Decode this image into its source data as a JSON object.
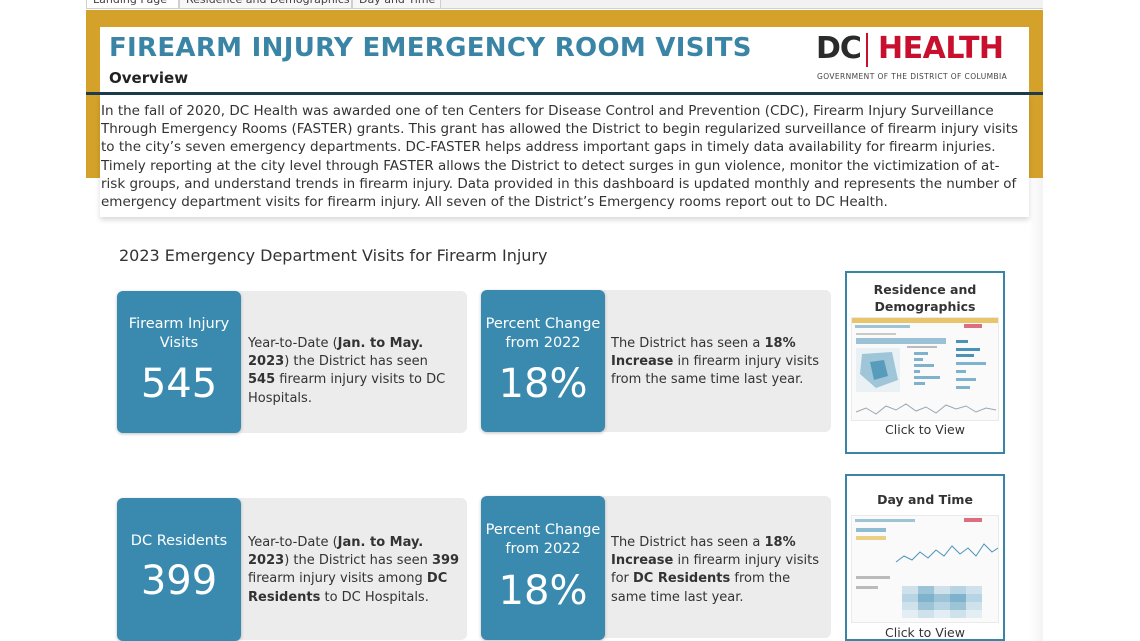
{
  "tabs": [
    "Landing Page",
    "Residence and Demographics",
    "Day and Time"
  ],
  "header": {
    "title": "FIREARM INJURY EMERGENCY ROOM VISITS",
    "subtitle": "Overview",
    "logo_dc": "DC",
    "logo_health": "HEALTH",
    "logo_sub": "GOVERNMENT OF THE DISTRICT OF COLUMBIA"
  },
  "intro": {
    "text": "In the fall of 2020, DC Health was awarded one of ten Centers for Disease Control and Prevention (CDC), Firearm Injury Surveillance Through Emergency Rooms (FASTER) grants. This grant has allowed the District to begin regularized surveillance of firearm injury visits to the city’s seven emergency departments.  DC-FASTER helps address important gaps in timely data availability for firearm injuries. Timely reporting at the city level through FASTER allows the District to detect surges in gun violence, monitor the victimization of at-risk groups, and understand trends in firearm injury.  Data provided in this dashboard is updated monthly and represents the number of emergency department visits for firearm injury. All seven of the District’s Emergency rooms report out to DC Health."
  },
  "section_title": "2023 Emergency Department Visits for Firearm Injury",
  "kpis": {
    "visits": {
      "label": "Firearm Injury Visits",
      "value": "545",
      "d1": "Year-to-Date (",
      "d2": "Jan. to May. 2023",
      "d3": ") the District has seen ",
      "d4": "545",
      "d5": " firearm injury visits to DC Hospitals."
    },
    "visits_change": {
      "label": "Percent Change from 2022",
      "value": "18%",
      "d1": "The District has seen a ",
      "d2": "18% Increase",
      "d3": " in firearm injury visits from the same time last year."
    },
    "residents": {
      "label": "DC Residents",
      "value": "399",
      "d1": "Year-to-Date (",
      "d2": "Jan. to May. 2023",
      "d3": ") the District has seen ",
      "d4": "399",
      "d5": " firearm injury visits among ",
      "d6": "DC Residents",
      "d7": " to DC Hospitals."
    },
    "residents_change": {
      "label": "Percent Change from 2022",
      "value": "18%",
      "d1": "The District has seen a ",
      "d2": "18% Increase",
      "d3": " in firearm injury visits for ",
      "d4": "DC Residents",
      "d5": " from the same time last year."
    }
  },
  "nav": {
    "residence": {
      "title": "Residence and Demographics",
      "link": "Click to View"
    },
    "daytime": {
      "title": "Day and Time",
      "link": "Click to View"
    }
  },
  "colors": {
    "accent_blue": "#3a8ab0",
    "title_blue": "#3a84a6",
    "gold": "#d4a22a",
    "logo_red": "#c8102e",
    "navy_rule": "#1f3a4d"
  }
}
